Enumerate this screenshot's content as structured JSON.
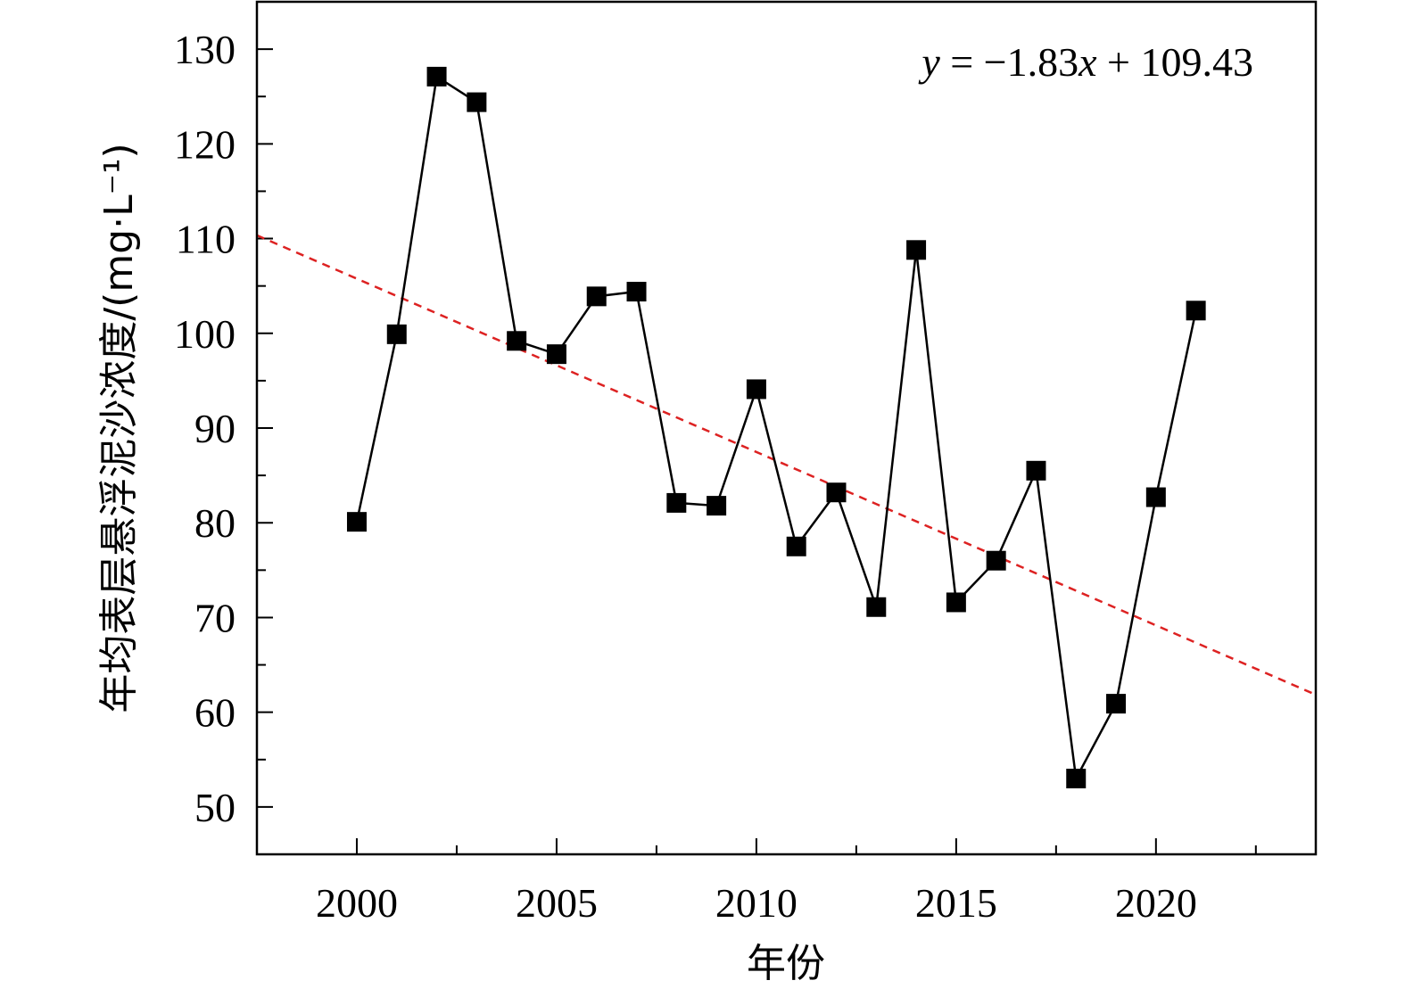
{
  "chart_data": {
    "type": "scatter",
    "x": [
      2000,
      2001,
      2002,
      2003,
      2004,
      2005,
      2006,
      2007,
      2008,
      2009,
      2010,
      2011,
      2012,
      2013,
      2014,
      2015,
      2016,
      2017,
      2018,
      2019,
      2020,
      2021
    ],
    "series": [
      {
        "values": [
          80.1,
          99.9,
          127.1,
          124.4,
          99.2,
          97.8,
          103.9,
          104.4,
          82.1,
          81.8,
          94.1,
          77.5,
          83.2,
          71.1,
          108.8,
          71.6,
          76.0,
          85.5,
          53.0,
          60.9,
          82.7,
          102.4
        ],
        "color": "#000000",
        "marker": "square",
        "line": "solid"
      }
    ],
    "trendline": {
      "equation_parts": {
        "y": "y",
        "eq": " = −1.83",
        "x": "x",
        "rest": " + 109.43"
      },
      "slope": -1.83,
      "intercept": 109.43,
      "x_origin": 1998,
      "color": "#dd2222",
      "style": "dashed"
    },
    "xlabel": "年份",
    "ylabel": "年均表层悬浮泥沙浓度/(mg·L⁻¹)",
    "xlim": [
      1997.5,
      2024
    ],
    "ylim": [
      45,
      135
    ],
    "xticks": [
      2000,
      2005,
      2010,
      2015,
      2020
    ],
    "xtick_labels": [
      "2000",
      "2005",
      "2010",
      "2015",
      "2020"
    ],
    "xminor_step": 2.5,
    "yticks": [
      50,
      60,
      70,
      80,
      90,
      100,
      110,
      120,
      130
    ],
    "ytick_labels": [
      "50",
      "60",
      "70",
      "80",
      "90",
      "100",
      "110",
      "120",
      "130"
    ],
    "yminor_step": 5,
    "grid": false,
    "legend": "none"
  }
}
